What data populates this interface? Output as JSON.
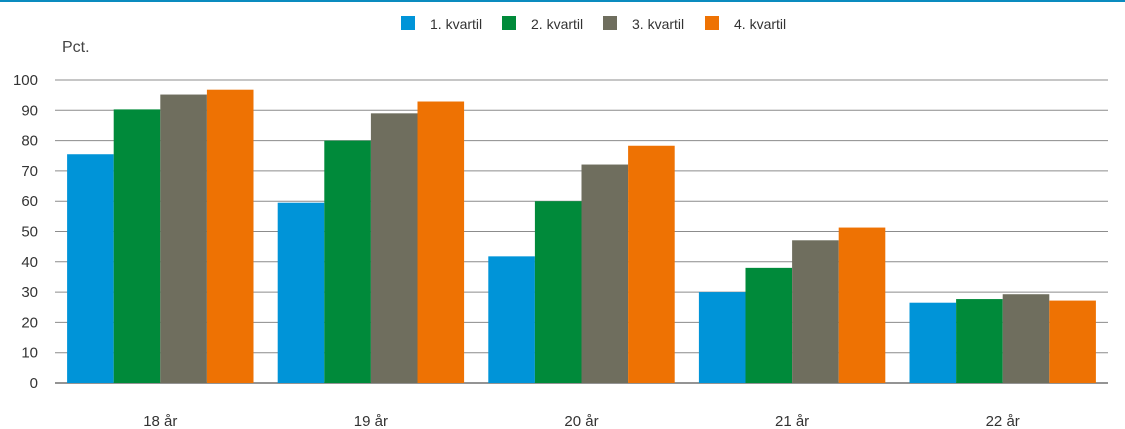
{
  "chart_data": {
    "type": "bar",
    "y_unit_label": "Pct.",
    "categories": [
      "18 år",
      "19 år",
      "20 år",
      "21 år",
      "22 år"
    ],
    "series": [
      {
        "name": "1. kvartil",
        "color": "#0094d8",
        "values": [
          75.5,
          59.5,
          41.8,
          30.0,
          26.5
        ]
      },
      {
        "name": "2. kvartil",
        "color": "#008a3a",
        "values": [
          90.3,
          80.0,
          60.0,
          38.0,
          27.7
        ]
      },
      {
        "name": "3. kvartil",
        "color": "#6f6e5e",
        "values": [
          95.2,
          89.0,
          72.1,
          47.1,
          29.3
        ]
      },
      {
        "name": "4. kvartil",
        "color": "#ee7203",
        "values": [
          96.8,
          92.9,
          78.3,
          51.3,
          27.2
        ]
      }
    ],
    "ylim": [
      0,
      100
    ],
    "yticks": [
      0,
      10,
      20,
      30,
      40,
      50,
      60,
      70,
      80,
      90,
      100
    ],
    "grid": true,
    "legend_position": "top-center"
  }
}
